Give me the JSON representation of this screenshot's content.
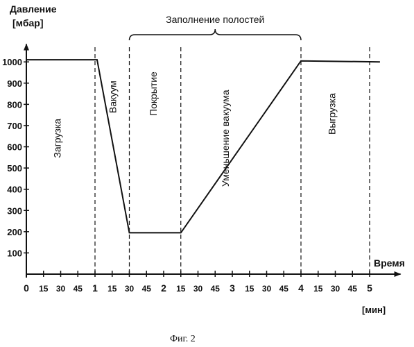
{
  "chart_data": {
    "type": "line",
    "ylabel_line1": "Давление",
    "ylabel_line2": "[мбар]",
    "xlabel": "Время",
    "xunit": "[мин]",
    "caption": "Фиг. 2",
    "yticks": [
      "100",
      "200",
      "300",
      "400",
      "500",
      "600",
      "700",
      "800",
      "900",
      "1000"
    ],
    "ytick_values": [
      100,
      200,
      300,
      400,
      500,
      600,
      700,
      800,
      900,
      1000
    ],
    "ylim": [
      0,
      1100
    ],
    "xlim": [
      0,
      5.45
    ],
    "xticks": [
      {
        "v": 0,
        "t": "0",
        "major": true
      },
      {
        "v": 0.25,
        "t": "15",
        "major": false
      },
      {
        "v": 0.5,
        "t": "30",
        "major": false
      },
      {
        "v": 0.75,
        "t": "45",
        "major": false
      },
      {
        "v": 1,
        "t": "1",
        "major": true
      },
      {
        "v": 1.25,
        "t": "15",
        "major": false
      },
      {
        "v": 1.5,
        "t": "30",
        "major": false
      },
      {
        "v": 1.75,
        "t": "45",
        "major": false
      },
      {
        "v": 2,
        "t": "2",
        "major": true
      },
      {
        "v": 2.25,
        "t": "15",
        "major": false
      },
      {
        "v": 2.5,
        "t": "30",
        "major": false
      },
      {
        "v": 2.75,
        "t": "45",
        "major": false
      },
      {
        "v": 3,
        "t": "3",
        "major": true
      },
      {
        "v": 3.25,
        "t": "15",
        "major": false
      },
      {
        "v": 3.5,
        "t": "30",
        "major": false
      },
      {
        "v": 3.75,
        "t": "45",
        "major": false
      },
      {
        "v": 4,
        "t": "4",
        "major": true
      },
      {
        "v": 4.25,
        "t": "15",
        "major": false
      },
      {
        "v": 4.5,
        "t": "30",
        "major": false
      },
      {
        "v": 4.75,
        "t": "45",
        "major": false
      },
      {
        "v": 5,
        "t": "5",
        "major": true
      }
    ],
    "series": [
      {
        "x": [
          0,
          1.03,
          1.5,
          2.25,
          4.0,
          5.15
        ],
        "y": [
          1010,
          1010,
          195,
          195,
          1005,
          1000
        ]
      }
    ],
    "phase_boundaries": [
      1.0,
      1.5,
      2.25,
      4.0,
      5.0
    ],
    "phases": [
      {
        "label": "Загрузка",
        "x": 0.5,
        "y": 640
      },
      {
        "label": "Вакуум",
        "x": 1.31,
        "y": 835
      },
      {
        "label": "Покрытие",
        "x": 1.9,
        "y": 850
      },
      {
        "label": "Уменьшение вакуума",
        "x": 2.95,
        "y": 640
      },
      {
        "label": "Выгрузка",
        "x": 4.5,
        "y": 755
      }
    ],
    "bracket_label": "Заполнение полостей",
    "bracket_range": [
      1.5,
      4.0
    ]
  }
}
